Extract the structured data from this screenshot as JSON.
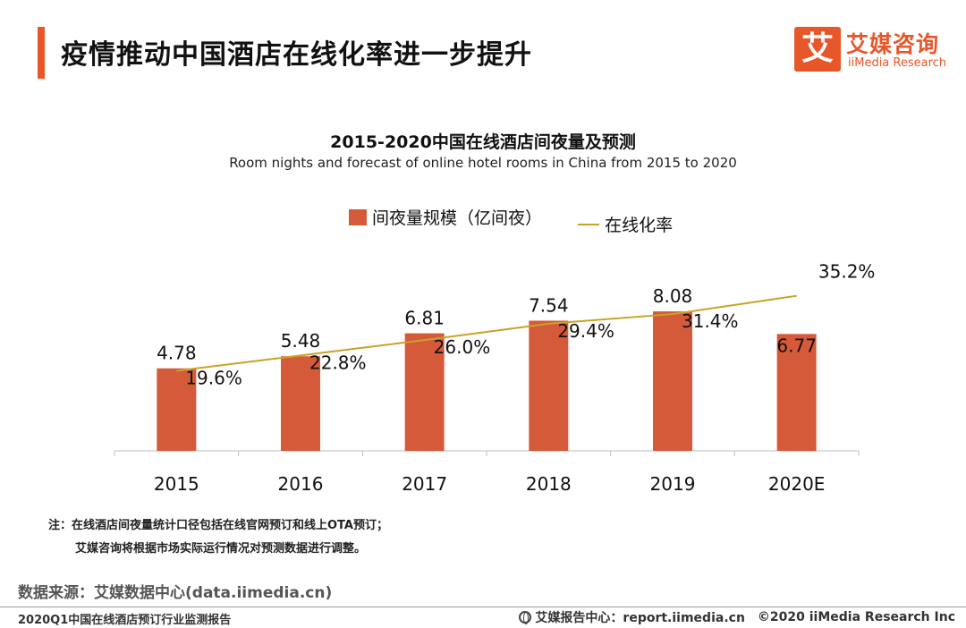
{
  "header": {
    "title": "疫情推动中国酒店在线化率进一步提升",
    "logo_box": "艾",
    "logo_cn": "艾媒咨询",
    "logo_en": "iiMedia Research"
  },
  "colors": {
    "accent": "#e8572a",
    "bar": "#d45a3a",
    "line": "#c9a227"
  },
  "chart_data": {
    "type": "bar",
    "title": "2015-2020中国在线酒店间夜量及预测",
    "subtitle": "Room nights and forecast of online hotel rooms in China from 2015 to 2020",
    "categories": [
      "2015",
      "2016",
      "2017",
      "2018",
      "2019",
      "2020E"
    ],
    "series": [
      {
        "name": "间夜量规模（亿间夜）",
        "type": "bar",
        "values": [
          4.78,
          5.48,
          6.81,
          7.54,
          8.08,
          6.77
        ],
        "labels": [
          "4.78",
          "5.48",
          "6.81",
          "7.54",
          "8.08",
          "6.77"
        ]
      },
      {
        "name": "在线化率",
        "type": "line",
        "values": [
          19.6,
          22.8,
          26.0,
          29.4,
          31.4,
          35.2
        ],
        "labels": [
          "19.6%",
          "22.8%",
          "26.0%",
          "29.4%",
          "31.4%",
          "35.2%"
        ]
      }
    ],
    "legend_position": "top-center",
    "grid": false
  },
  "notes": [
    "注：在线酒店间夜量统计口径包括在线官网预订和线上OTA预订；",
    "艾媒咨询将根据市场实际运行情况对预测数据进行调整。"
  ],
  "source": "数据来源：艾媒数据中心(data.iimedia.cn)",
  "footer": {
    "left": "2020Q1中国在线酒店预订行业监测报告",
    "center": "艾媒报告中心：report.iimedia.cn",
    "right": "©2020  iiMedia Research  Inc"
  }
}
